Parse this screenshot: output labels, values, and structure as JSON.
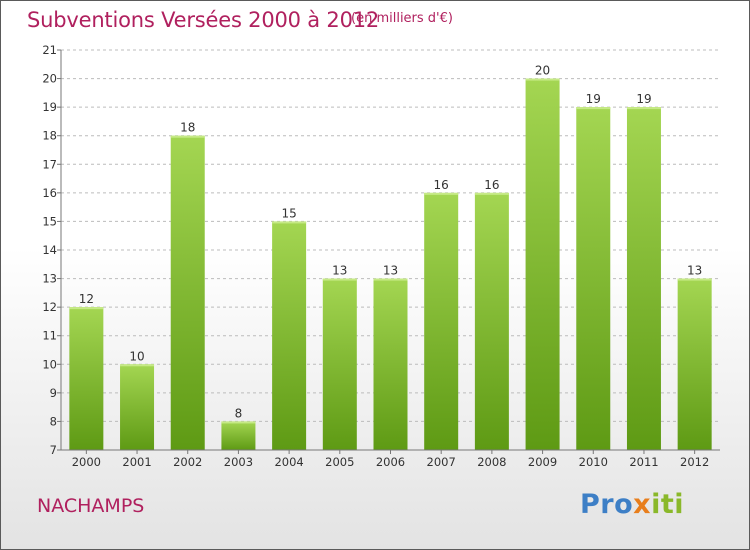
{
  "header": {
    "title": "Subventions Versées 2000 à 2012",
    "subtitle": "(en milliers d'€)"
  },
  "footer": {
    "commune": "NACHAMPS",
    "logo": {
      "p1": "Pro",
      "p2": "x",
      "p3": "iti"
    }
  },
  "colors": {
    "title": "#b0205e",
    "bar_top": "#a4d652",
    "bar_bottom": "#5e9a14",
    "axis": "#777777",
    "grid": "#bcbcbc"
  },
  "chart_data": {
    "type": "bar",
    "title": "Subventions Versées 2000 à 2012",
    "subtitle": "(en milliers d'€)",
    "xlabel": "",
    "ylabel": "",
    "categories": [
      "2000",
      "2001",
      "2002",
      "2003",
      "2004",
      "2005",
      "2006",
      "2007",
      "2008",
      "2009",
      "2010",
      "2011",
      "2012"
    ],
    "values": [
      12,
      10,
      18,
      8,
      15,
      13,
      13,
      16,
      16,
      20,
      19,
      19,
      13
    ],
    "data_labels": [
      "12",
      "10",
      "18",
      "8",
      "15",
      "13",
      "13",
      "16",
      "16",
      "20",
      "19",
      "19",
      "13"
    ],
    "ylim": [
      7,
      21
    ],
    "yticks": [
      7,
      8,
      9,
      10,
      11,
      12,
      13,
      14,
      15,
      16,
      17,
      18,
      19,
      20,
      21
    ],
    "ytick_labels": [
      "7",
      "8",
      "9",
      "10",
      "11",
      "12",
      "13",
      "14",
      "15",
      "16",
      "17",
      "18",
      "19",
      "20",
      "21"
    ],
    "grid": "horizontal dashed",
    "legend": "none"
  }
}
